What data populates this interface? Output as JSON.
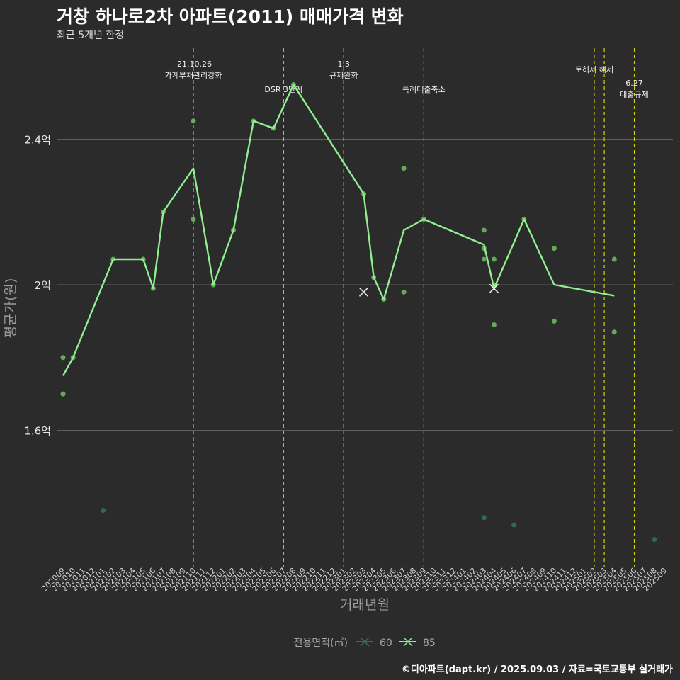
{
  "title": "거창 하나로2차 아파트(2011) 매매가격 변화",
  "subtitle": "최근 5개년 한정",
  "caption": "©디아파트(dapt.kr) / 2025.09.03 / 자료=국토교통부 실거래가",
  "colors": {
    "background": "#2b2b2b",
    "grid": "#5e5e5e",
    "series_60": "#2f6e6e",
    "series_85": "#90ee90",
    "points_85": "#6fbf5f",
    "event_line": "#d4d40a",
    "text": "#e6e6e6",
    "axis_text": "#9a9a9a"
  },
  "chart_data": {
    "type": "line",
    "xlabel": "거래년월",
    "ylabel": "평균가(원)",
    "ylim": [
      1.24,
      2.7
    ],
    "yticks": [
      {
        "value": 1.6,
        "label": "1.6억"
      },
      {
        "value": 2.0,
        "label": "2억"
      },
      {
        "value": 2.4,
        "label": "2.4억"
      }
    ],
    "categories": [
      "202009",
      "202010",
      "202011",
      "202012",
      "202101",
      "202102",
      "202103",
      "202104",
      "202105",
      "202106",
      "202107",
      "202108",
      "202109",
      "202110",
      "202111",
      "202112",
      "202201",
      "202202",
      "202203",
      "202204",
      "202205",
      "202206",
      "202207",
      "202208",
      "202209",
      "202210",
      "202211",
      "202212",
      "202301",
      "202302",
      "202303",
      "202304",
      "202305",
      "202306",
      "202307",
      "202308",
      "202309",
      "202310",
      "202311",
      "202312",
      "202401",
      "202402",
      "202403",
      "202404",
      "202405",
      "202406",
      "202407",
      "202408",
      "202409",
      "202410",
      "202411",
      "202412",
      "202501",
      "202502",
      "202503",
      "202504",
      "202505",
      "202506",
      "202507",
      "202508",
      "202509"
    ],
    "legend": {
      "title": "전용면적(㎡)",
      "position": "bottom",
      "items": [
        {
          "label": "60",
          "series": "60"
        },
        {
          "label": "85",
          "series": "85"
        }
      ]
    },
    "events": [
      {
        "x": "202110",
        "label": "'21.10.26\n가계부채관리강화",
        "level": 0
      },
      {
        "x": "202207",
        "label": "DSR 3단계",
        "level": 1
      },
      {
        "x": "202301",
        "label": "1.3\n규제완화",
        "level": 0
      },
      {
        "x": "202309",
        "label": "특례대출축소",
        "level": 1
      },
      {
        "x": "202502",
        "label": "토허제 해제",
        "level": 0
      },
      {
        "x": "202503",
        "label": "",
        "level": 0
      },
      {
        "x": "202506",
        "label": "6.27\n대출규제",
        "level": 2
      }
    ],
    "series": [
      {
        "name": "85",
        "line": [
          {
            "x": "202009",
            "y": 1.75
          },
          {
            "x": "202010",
            "y": 1.8
          },
          {
            "x": "202102",
            "y": 2.07
          },
          {
            "x": "202105",
            "y": 2.07
          },
          {
            "x": "202106",
            "y": 1.99
          },
          {
            "x": "202107",
            "y": 2.2
          },
          {
            "x": "202110",
            "y": 2.32
          },
          {
            "x": "202112",
            "y": 2.0
          },
          {
            "x": "202202",
            "y": 2.15
          },
          {
            "x": "202204",
            "y": 2.45
          },
          {
            "x": "202206",
            "y": 2.43
          },
          {
            "x": "202208",
            "y": 2.55
          },
          {
            "x": "202303",
            "y": 2.25
          },
          {
            "x": "202304",
            "y": 2.02
          },
          {
            "x": "202305",
            "y": 1.96
          },
          {
            "x": "202307",
            "y": 2.15
          },
          {
            "x": "202309",
            "y": 2.18
          },
          {
            "x": "202403",
            "y": 2.11
          },
          {
            "x": "202404",
            "y": 1.99
          },
          {
            "x": "202407",
            "y": 2.18
          },
          {
            "x": "202410",
            "y": 2.0
          },
          {
            "x": "202504",
            "y": 1.97
          }
        ],
        "points": [
          {
            "x": "202009",
            "y": 1.8
          },
          {
            "x": "202009",
            "y": 1.7
          },
          {
            "x": "202010",
            "y": 1.8
          },
          {
            "x": "202102",
            "y": 2.07
          },
          {
            "x": "202105",
            "y": 2.07
          },
          {
            "x": "202106",
            "y": 1.99
          },
          {
            "x": "202107",
            "y": 2.2
          },
          {
            "x": "202110",
            "y": 2.45
          },
          {
            "x": "202110",
            "y": 2.18
          },
          {
            "x": "202112",
            "y": 2.0
          },
          {
            "x": "202202",
            "y": 2.15
          },
          {
            "x": "202204",
            "y": 2.45
          },
          {
            "x": "202206",
            "y": 2.43
          },
          {
            "x": "202208",
            "y": 2.55
          },
          {
            "x": "202303",
            "y": 2.25
          },
          {
            "x": "202304",
            "y": 2.02
          },
          {
            "x": "202305",
            "y": 1.96
          },
          {
            "x": "202307",
            "y": 2.32
          },
          {
            "x": "202307",
            "y": 1.98
          },
          {
            "x": "202309",
            "y": 2.18
          },
          {
            "x": "202403",
            "y": 2.15
          },
          {
            "x": "202403",
            "y": 2.1
          },
          {
            "x": "202403",
            "y": 2.07
          },
          {
            "x": "202404",
            "y": 2.07
          },
          {
            "x": "202404",
            "y": 2.0
          },
          {
            "x": "202404",
            "y": 1.89
          },
          {
            "x": "202407",
            "y": 2.18
          },
          {
            "x": "202410",
            "y": 2.1
          },
          {
            "x": "202410",
            "y": 1.9
          },
          {
            "x": "202504",
            "y": 2.07
          },
          {
            "x": "202504",
            "y": 1.87
          }
        ]
      },
      {
        "name": "60",
        "line": [],
        "points": [
          {
            "x": "202101",
            "y": 1.38
          },
          {
            "x": "202403",
            "y": 1.36
          },
          {
            "x": "202406",
            "y": 1.34
          },
          {
            "x": "202508",
            "y": 1.3
          }
        ]
      }
    ],
    "markers_x": [
      {
        "x": "202303",
        "y": 1.98
      },
      {
        "x": "202404",
        "y": 1.99
      }
    ]
  }
}
